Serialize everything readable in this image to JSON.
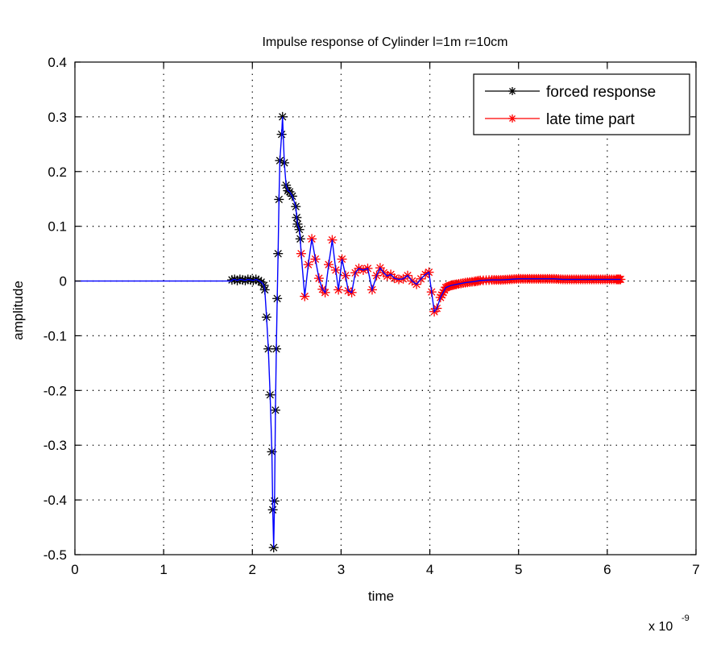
{
  "chart_data": {
    "type": "line",
    "title": "Impulse response of Cylinder l=1m r=10cm",
    "xlabel": "time",
    "ylabel": "amplitude",
    "x_exponent_label": "x 10",
    "x_exponent_power": "-9",
    "xlim": [
      0,
      7
    ],
    "ylim": [
      -0.5,
      0.4
    ],
    "xticks": [
      "0",
      "1",
      "2",
      "3",
      "4",
      "5",
      "6",
      "7"
    ],
    "yticks": [
      "-0.5",
      "-0.4",
      "-0.3",
      "-0.2",
      "-0.1",
      "0",
      "0.1",
      "0.2",
      "0.3",
      "0.4"
    ],
    "xtick_values": [
      0,
      1,
      2,
      3,
      4,
      5,
      6,
      7
    ],
    "ytick_values": [
      -0.5,
      -0.4,
      -0.3,
      -0.2,
      -0.1,
      0,
      0.1,
      0.2,
      0.3,
      0.4
    ],
    "grid": true,
    "legend_position": "top-right",
    "colors": {
      "forced": "#000000",
      "late": "#ff0000",
      "signal": "#0000ff"
    },
    "series": [
      {
        "name": "forced response",
        "x": [
          1.77,
          1.8,
          1.83,
          1.86,
          1.89,
          1.92,
          1.95,
          1.98,
          2.01,
          2.04,
          2.07,
          2.1,
          2.13,
          2.14,
          2.16,
          2.18,
          2.2,
          2.22,
          2.23,
          2.24,
          2.25,
          2.26,
          2.27,
          2.28,
          2.29,
          2.3,
          2.31,
          2.33,
          2.34,
          2.36,
          2.38,
          2.4,
          2.42,
          2.45,
          2.49,
          2.5,
          2.51,
          2.53,
          2.54
        ],
        "y": [
          0.002,
          0.003,
          0.001,
          0.003,
          0.002,
          0.001,
          0.003,
          0.002,
          0.001,
          0.003,
          0.001,
          -0.002,
          -0.008,
          -0.016,
          -0.066,
          -0.124,
          -0.208,
          -0.312,
          -0.418,
          -0.487,
          -0.402,
          -0.236,
          -0.124,
          -0.032,
          0.05,
          0.149,
          0.22,
          0.268,
          0.3,
          0.216,
          0.175,
          0.165,
          0.163,
          0.155,
          0.136,
          0.116,
          0.104,
          0.094,
          0.077
        ]
      },
      {
        "name": "late time part",
        "x": [
          2.55,
          2.59,
          2.63,
          2.67,
          2.71,
          2.75,
          2.79,
          2.82,
          2.86,
          2.9,
          2.94,
          2.97,
          3.01,
          3.05,
          3.08,
          3.12,
          3.16,
          3.2,
          3.25,
          3.3,
          3.35,
          3.4,
          3.44,
          3.48,
          3.52,
          3.56,
          3.6,
          3.65,
          3.7,
          3.75,
          3.8,
          3.85,
          3.9,
          3.95,
          3.99,
          4.02,
          4.05,
          4.08,
          4.12,
          4.18,
          4.24,
          4.3,
          4.4,
          4.5,
          4.57,
          4.7,
          4.8,
          4.9,
          5.0,
          5.1,
          5.2,
          5.3,
          5.4,
          5.5,
          5.6,
          5.7,
          5.8,
          5.9,
          6.0,
          6.1,
          6.15
        ],
        "y": [
          0.05,
          -0.028,
          0.03,
          0.077,
          0.04,
          0.005,
          -0.015,
          -0.021,
          0.03,
          0.075,
          0.02,
          -0.016,
          0.04,
          0.01,
          -0.018,
          -0.021,
          0.015,
          0.023,
          0.02,
          0.023,
          -0.016,
          0.01,
          0.024,
          0.015,
          0.009,
          0.012,
          0.005,
          0.003,
          0.004,
          0.01,
          0.0,
          -0.006,
          0.004,
          0.012,
          0.016,
          -0.02,
          -0.056,
          -0.05,
          -0.03,
          -0.012,
          -0.008,
          -0.006,
          -0.003,
          -0.001,
          0.001,
          0.002,
          0.002,
          0.003,
          0.004,
          0.004,
          0.004,
          0.004,
          0.004,
          0.003,
          0.003,
          0.003,
          0.003,
          0.003,
          0.003,
          0.003,
          0.003
        ]
      }
    ],
    "signal_lead_in": {
      "x": [
        0,
        1.77
      ],
      "y": [
        0,
        0
      ]
    }
  }
}
